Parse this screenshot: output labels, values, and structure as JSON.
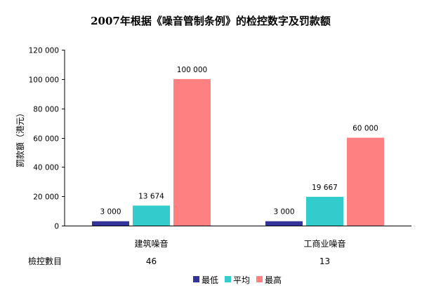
{
  "chart_data": {
    "type": "bar",
    "title": "2007年根据《噪音管制条例》的检控数字及罚款额",
    "ylabel": "罰款額（港元）",
    "xlabel": "",
    "categories": [
      "建筑噪音",
      "工商业噪音"
    ],
    "series": [
      {
        "name": "最低",
        "values": [
          3000,
          3000
        ],
        "color": "#333399",
        "labels": [
          "3 000",
          "3 000"
        ]
      },
      {
        "name": "平均",
        "values": [
          13674,
          19667
        ],
        "color": "#33CCCC",
        "labels": [
          "13 674",
          "19 667"
        ]
      },
      {
        "name": "最高",
        "values": [
          100000,
          60000
        ],
        "color": "#FF8080",
        "labels": [
          "100 000",
          "60 000"
        ]
      }
    ],
    "ylim": [
      0,
      120000
    ],
    "yticks": [
      0,
      20000,
      40000,
      60000,
      80000,
      100000,
      120000
    ],
    "ytick_labels": [
      "0",
      "20 000",
      "40 000",
      "60 000",
      "80 000",
      "100 000",
      "120 000"
    ],
    "grid": false,
    "legend": "bottom",
    "table_row": {
      "label": "檢控數目",
      "values": [
        "46",
        "13"
      ]
    }
  }
}
